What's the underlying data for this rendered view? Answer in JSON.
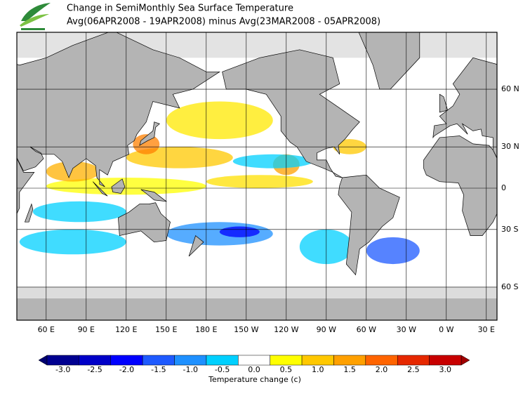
{
  "header": {
    "title": "Change in SemiMonthly Sea Surface Temperature",
    "subtitle": "Avg(06APR2008 - 19APR2008) minus Avg(23MAR2008 - 05APR2008)"
  },
  "map": {
    "lon_labels": [
      "60 E",
      "90 E",
      "120 E",
      "150 E",
      "180 E",
      "150 W",
      "120 W",
      "90 W",
      "60 W",
      "30 W",
      "0 W",
      "30 E"
    ],
    "lat_labels": [
      "60 N",
      "30 N",
      "0",
      "30 S",
      "60 S"
    ]
  },
  "colorbar": {
    "label": "Temperature change  (c)",
    "ticks": [
      {
        "value": -3,
        "label": "-3.0"
      },
      {
        "value": -2.5,
        "label": "-2.5"
      },
      {
        "value": -2,
        "label": "-2.0"
      },
      {
        "value": -1.5,
        "label": "-1.5"
      },
      {
        "value": -1,
        "label": "-1.0"
      },
      {
        "value": -0.5,
        "label": "-0.5"
      },
      {
        "value": 0,
        "label": "0.0"
      },
      {
        "value": 0.5,
        "label": "0.5"
      },
      {
        "value": 1,
        "label": "1.0"
      },
      {
        "value": 1.5,
        "label": "1.5"
      },
      {
        "value": 2,
        "label": "2.0"
      },
      {
        "value": 2.5,
        "label": "2.5"
      },
      {
        "value": 3,
        "label": "3.0"
      }
    ],
    "colors": [
      "#000090",
      "#0000c8",
      "#0000ff",
      "#1e5aff",
      "#1e90ff",
      "#00d0ff",
      "#ffffff",
      "#ffff00",
      "#ffc800",
      "#ffa000",
      "#ff6400",
      "#e62800",
      "#c80000"
    ],
    "under_color": "#000070",
    "over_color": "#a00000"
  }
}
